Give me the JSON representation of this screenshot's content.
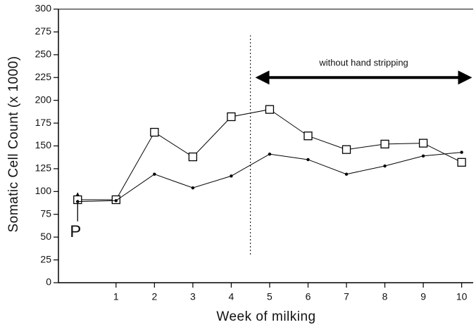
{
  "chart_data": {
    "type": "line",
    "y_label": "Somatic Cell Count (x 1000)",
    "x_label": "Week of milking",
    "x": [
      0,
      1,
      2,
      3,
      4,
      5,
      6,
      7,
      8,
      9,
      10
    ],
    "series": [
      {
        "color": "#000000",
        "marker": "square",
        "values": [
          91,
          91,
          165,
          138,
          182,
          190,
          161,
          146,
          152,
          153,
          132
        ]
      },
      {
        "color": "#000000",
        "marker": "dot",
        "values": [
          89,
          90,
          119,
          104,
          117,
          141,
          135,
          119,
          128,
          139,
          143
        ]
      }
    ],
    "xlim": [
      -0.5,
      10.3
    ],
    "xticks": [
      1,
      2,
      3,
      4,
      5,
      6,
      7,
      8,
      9,
      10
    ],
    "ylim": [
      0,
      300
    ],
    "yticks": [
      0,
      25,
      50,
      75,
      100,
      125,
      150,
      175,
      200,
      225,
      250,
      275,
      300
    ],
    "vline": 4.5,
    "annotations": [
      {
        "text": "without hand stripping",
        "x": [
          4.7,
          10.2
        ],
        "y": 225
      },
      {
        "text": "P",
        "x": 0,
        "y": 55
      }
    ]
  }
}
